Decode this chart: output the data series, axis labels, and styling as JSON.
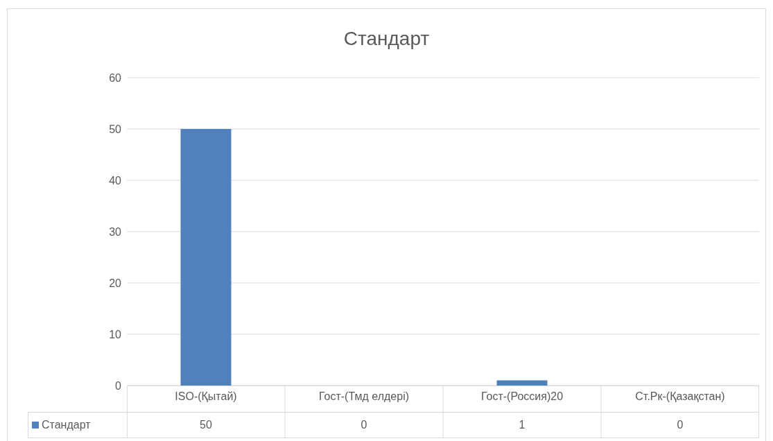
{
  "chart_data": {
    "type": "bar",
    "title": "Стандарт",
    "categories": [
      "ISO-(Қытай)",
      "Гост-(Тмд елдері)",
      "Гост-(Россия)20",
      "Ст.Рк-(Қазақстан)"
    ],
    "series": [
      {
        "name": "Стандарт",
        "color": "#4f81bd",
        "values": [
          50,
          0,
          1,
          0
        ]
      }
    ],
    "ylim": [
      0,
      60
    ],
    "yticks": [
      0,
      10,
      20,
      30,
      40,
      50,
      60
    ],
    "grid": "y",
    "legend": "bottom",
    "data_labels": true
  }
}
